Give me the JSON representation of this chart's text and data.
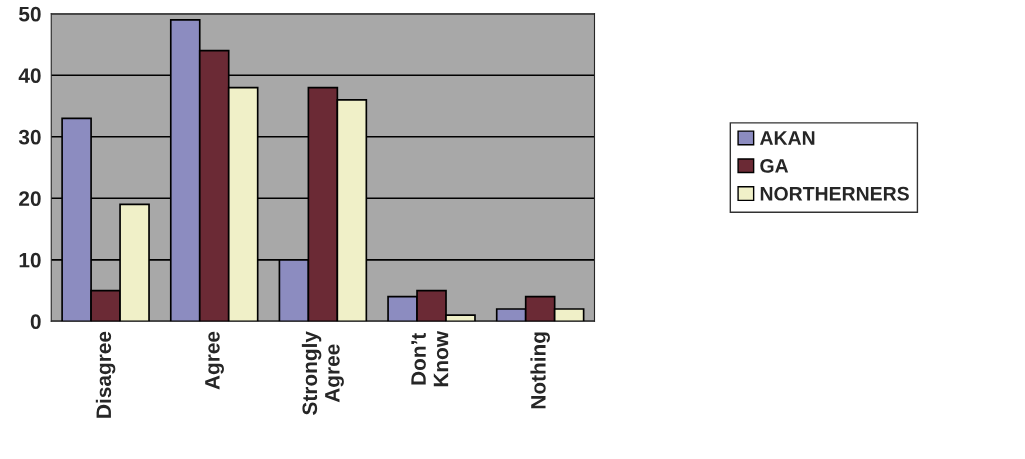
{
  "chart_data": {
    "type": "bar",
    "categories": [
      "Disagree",
      "Agree",
      "Strongly\nAgree",
      "Don’t\nKnow",
      "Nothing"
    ],
    "series": [
      {
        "name": "AKAN",
        "color": "#8c8cc0",
        "values": [
          33,
          49,
          10,
          4,
          2
        ]
      },
      {
        "name": "GA",
        "color": "#6b2a35",
        "values": [
          5,
          44,
          38,
          5,
          4
        ]
      },
      {
        "name": "NORTHERNERS",
        "color": "#f0f0c8",
        "values": [
          19,
          38,
          36,
          1,
          2
        ]
      }
    ],
    "ylim": [
      0,
      50
    ],
    "yticks": [
      0,
      10,
      20,
      30,
      40,
      50
    ],
    "grid": "y",
    "legend": "right"
  }
}
